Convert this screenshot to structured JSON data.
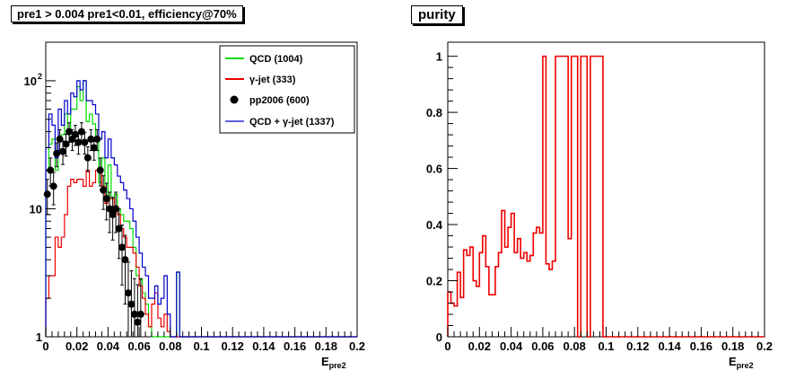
{
  "chart_data": [
    {
      "type": "line",
      "title": "pre1 > 0.004  pre1<0.01, efficiency@70%",
      "xlabel_main": "E",
      "xlabel_sub": "pre2",
      "ylabel": "",
      "xlim": [
        0,
        0.2
      ],
      "ylim": [
        1,
        200
      ],
      "yscale": "log",
      "grid": false,
      "legend_position": "top-right",
      "x_ticks": [
        "0",
        "0.02",
        "0.04",
        "0.06",
        "0.08",
        "0.1",
        "0.12",
        "0.14",
        "0.16",
        "0.18",
        "0.2"
      ],
      "y_ticks": [
        {
          "value": 1,
          "base": "1",
          "exp": ""
        },
        {
          "value": 10,
          "base": "10",
          "exp": ""
        },
        {
          "value": 100,
          "base": "10",
          "exp": "2"
        }
      ],
      "bin_width": 0.002,
      "series": [
        {
          "name": "QCD (1004)",
          "color": "#00dd00",
          "style": "step",
          "values": [
            20,
            32,
            35,
            20,
            36,
            38,
            55,
            38,
            60,
            60,
            90,
            70,
            100,
            48,
            55,
            46,
            35,
            16,
            25,
            12,
            22,
            12,
            13,
            10,
            9,
            8,
            8,
            7,
            5,
            3,
            2.8,
            2.2,
            1.8,
            1.2,
            1,
            1,
            1,
            1,
            1,
            1,
            1,
            1,
            3.2,
            1,
            1,
            1,
            1,
            1,
            1,
            1,
            1,
            1,
            1,
            1,
            1,
            1,
            1,
            1,
            1,
            1,
            1,
            1,
            1,
            1,
            1,
            1,
            1,
            1,
            1,
            1,
            1,
            1,
            1,
            1,
            1,
            1,
            1,
            1,
            1,
            1,
            1,
            1,
            1,
            1,
            1,
            1,
            1,
            1,
            1,
            1,
            1,
            1,
            1,
            1,
            1,
            1,
            1,
            1,
            1,
            1
          ]
        },
        {
          "name": "γ-jet (333)",
          "color": "#ee0000",
          "style": "step",
          "values": [
            2,
            3,
            3,
            6,
            5,
            6,
            9,
            15,
            17,
            16,
            17,
            17,
            15,
            20,
            15,
            16,
            20,
            20,
            15,
            11,
            12,
            12,
            10,
            9,
            7,
            6,
            5,
            5,
            4.5,
            3.5,
            2.5,
            2,
            1.5,
            1.2,
            1.8,
            2.2,
            1.4,
            1.2,
            1.5,
            1.1,
            1,
            1,
            1,
            1,
            1,
            1,
            1,
            1,
            1,
            1,
            1,
            1,
            1,
            1,
            1,
            1,
            1,
            1,
            1,
            1,
            1,
            1,
            1,
            1,
            1,
            1,
            1,
            1,
            1,
            1,
            1,
            1,
            1,
            1,
            1,
            1,
            1,
            1,
            1,
            1,
            1,
            1,
            1,
            1,
            1,
            1,
            1,
            1,
            1,
            1,
            1,
            1,
            1,
            1,
            1,
            1,
            1,
            1,
            1,
            1
          ]
        },
        {
          "name": "QCD + γ-jet (1337)",
          "color": "#0000cc",
          "style": "step",
          "values": [
            30,
            55,
            45,
            25,
            60,
            45,
            70,
            55,
            80,
            75,
            100,
            85,
            100,
            70,
            70,
            65,
            55,
            35,
            40,
            25,
            35,
            25,
            22,
            18,
            16,
            14,
            12,
            10,
            8,
            6,
            4.5,
            3.5,
            3,
            2,
            2,
            2.5,
            1.8,
            2,
            3,
            1.5,
            1,
            1,
            3.2,
            1,
            1,
            1,
            1,
            1,
            1,
            1,
            1,
            1,
            1,
            1,
            1,
            1,
            1,
            1,
            1,
            1,
            1,
            1,
            1,
            1,
            1,
            1,
            1,
            1,
            1,
            1,
            1,
            1,
            1,
            1,
            1,
            1,
            1,
            1,
            1,
            1,
            1,
            1,
            1,
            1,
            1,
            1,
            1,
            1,
            1,
            1,
            1,
            1,
            1,
            1,
            1,
            1,
            1,
            1,
            1,
            1
          ]
        },
        {
          "name": "pp2006 (600)",
          "color": "#000000",
          "style": "points",
          "x": [
            0.001,
            0.003,
            0.005,
            0.007,
            0.009,
            0.011,
            0.013,
            0.015,
            0.017,
            0.019,
            0.021,
            0.023,
            0.025,
            0.027,
            0.029,
            0.031,
            0.033,
            0.035,
            0.037,
            0.039,
            0.041,
            0.043,
            0.045,
            0.047,
            0.049,
            0.051,
            0.053,
            0.055,
            0.057,
            0.059,
            0.061
          ],
          "values": [
            13,
            20,
            15,
            27,
            35,
            28,
            32,
            40,
            35,
            38,
            33,
            40,
            33,
            25,
            35,
            30,
            35,
            20,
            14,
            12,
            10,
            9,
            10,
            7,
            5,
            4,
            2.2,
            1.8,
            1.5,
            1.3,
            1.5
          ]
        }
      ]
    },
    {
      "type": "line",
      "title": "purity",
      "xlabel_main": "E",
      "xlabel_sub": "pre2",
      "ylabel": "",
      "xlim": [
        0,
        0.2
      ],
      "ylim": [
        0,
        1.05
      ],
      "yscale": "linear",
      "grid": false,
      "x_ticks": [
        "0",
        "0.02",
        "0.04",
        "0.06",
        "0.08",
        "0.1",
        "0.12",
        "0.14",
        "0.16",
        "0.18",
        "0.2"
      ],
      "y_ticks": [
        {
          "value": 0,
          "label": "0"
        },
        {
          "value": 0.2,
          "label": "0.2"
        },
        {
          "value": 0.4,
          "label": "0.4"
        },
        {
          "value": 0.6,
          "label": "0.6"
        },
        {
          "value": 0.8,
          "label": "0.8"
        },
        {
          "value": 1,
          "label": "1"
        }
      ],
      "bin_width": 0.002,
      "series": [
        {
          "name": "",
          "color": "#ee0000",
          "style": "step",
          "values": [
            0.16,
            0.12,
            0.11,
            0.23,
            0.14,
            0.31,
            0.29,
            0.32,
            0.2,
            0.18,
            0.3,
            0.36,
            0.25,
            0.15,
            0.15,
            0.25,
            0.3,
            0.45,
            0.32,
            0.39,
            0.44,
            0.3,
            0.35,
            0.28,
            0.3,
            0.27,
            0.29,
            0.37,
            0.39,
            0.37,
            1,
            0.26,
            0.24,
            0.27,
            1,
            1,
            1,
            1,
            0.35,
            1,
            1,
            0,
            1,
            1,
            0,
            1,
            1,
            1,
            1,
            0,
            0,
            0,
            0,
            0,
            0,
            0,
            0,
            0,
            0,
            0,
            0,
            0,
            0,
            0,
            0,
            0,
            0,
            0,
            0,
            0,
            0,
            0,
            0,
            0,
            0,
            0,
            0,
            0,
            0,
            0,
            0,
            0,
            0,
            0,
            0,
            0,
            0,
            0,
            0,
            0,
            0,
            0,
            0,
            0,
            0,
            0,
            0,
            0,
            0,
            0
          ]
        }
      ]
    }
  ]
}
